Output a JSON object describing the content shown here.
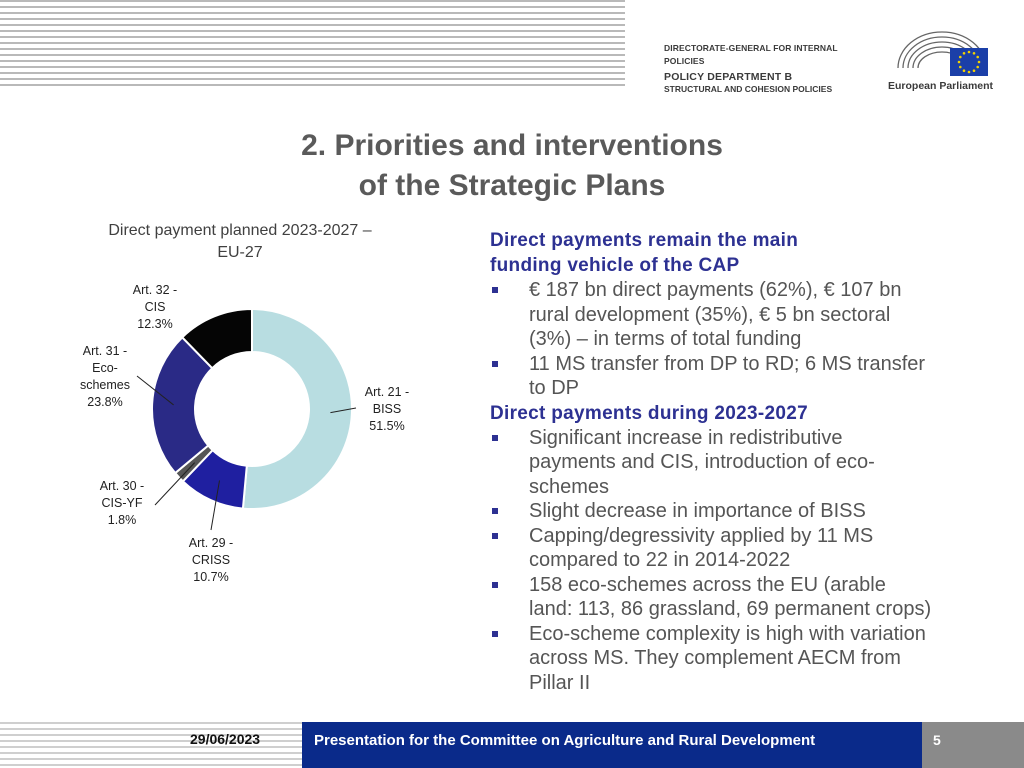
{
  "header": {
    "line1": "DIRECTORATE-GENERAL FOR INTERNAL POLICIES",
    "line2": "POLICY DEPARTMENT B",
    "line3": "STRUCTURAL AND COHESION POLICIES",
    "logo_text": "European Parliament"
  },
  "title": {
    "line1": "2. Priorities and interventions",
    "line2": "of the Strategic Plans"
  },
  "chart_data": {
    "type": "pie",
    "donut": true,
    "title": "Direct payment planned 2023-2027 – EU-27",
    "title_lines": [
      "Direct payment planned 2023-2027 –",
      "EU-27"
    ],
    "slices": [
      {
        "label_lines": [
          "Art. 21 -",
          "BISS",
          "51.5%"
        ],
        "category": "Art. 21 - BISS",
        "value": 51.5,
        "color": "#b8dde1"
      },
      {
        "label_lines": [
          "Art. 29 -",
          "CRISS",
          "10.7%"
        ],
        "category": "Art. 29 - CRISS",
        "value": 10.7,
        "color": "#1f1fa0"
      },
      {
        "label_lines": [
          "Art. 30 -",
          "CIS-YF",
          "1.8%"
        ],
        "category": "Art. 30 - CIS-YF",
        "value": 1.8,
        "color": "#555555"
      },
      {
        "label_lines": [
          "Art. 31 -",
          "Eco-",
          "schemes",
          "23.8%"
        ],
        "category": "Art. 31 - Eco-schemes",
        "value": 23.8,
        "color": "#2a2a86"
      },
      {
        "label_lines": [
          "Art. 32 -",
          "CIS",
          "12.3%"
        ],
        "category": "Art. 32 - CIS",
        "value": 12.3,
        "color": "#050505"
      }
    ]
  },
  "sections": [
    {
      "heading_lines": [
        "Direct payments remain the main",
        "funding vehicle of the CAP"
      ],
      "bullets": [
        [
          "€ 187 bn direct payments (62%), € 107 bn",
          "rural development (35%), € 5 bn sectoral",
          "(3%) – in terms of total funding"
        ],
        [
          "11 MS transfer from DP to RD; 6 MS transfer",
          "to DP"
        ]
      ]
    },
    {
      "heading_lines": [
        "Direct payments during 2023-2027"
      ],
      "bullets": [
        [
          "Significant increase in redistributive",
          "payments and CIS, introduction of eco-",
          "schemes"
        ],
        [
          "Slight decrease in importance of BISS"
        ],
        [
          "Capping/degressivity applied by 11 MS",
          "compared to 22 in 2014-2022"
        ],
        [
          "158 eco-schemes across the EU (arable",
          "land: 113, 86 grassland, 69 permanent crops)"
        ],
        [
          "Eco-scheme complexity is high with variation",
          "across MS. They complement AECM from",
          "Pillar II"
        ]
      ]
    }
  ],
  "footer": {
    "date": "29/06/2023",
    "presentation": "Presentation for the Committee on Agriculture and Rural Development",
    "page": "5"
  }
}
